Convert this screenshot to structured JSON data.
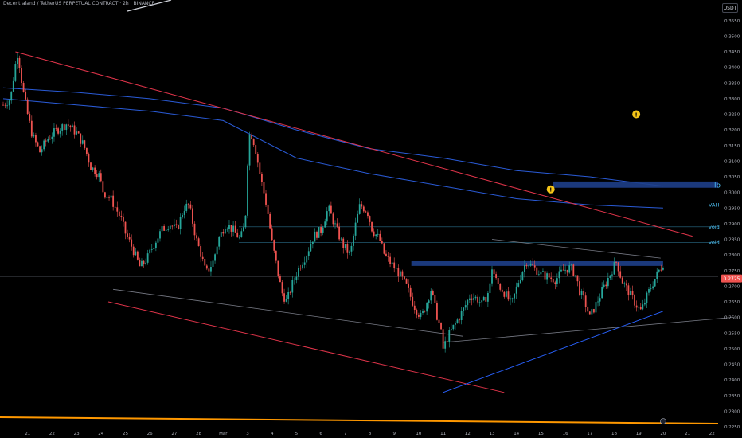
{
  "header": {
    "title": "Decentraland / TetherUS PERPETUAL CONTRACT · 2h · BINANCE",
    "currency": "USDT"
  },
  "colors": {
    "background": "#000000",
    "candle_up": "#26a69a",
    "candle_down": "#ef5350",
    "vwap_upper": "#2a5bd7",
    "vwap_lower": "#2a5bd7",
    "red_trendline": "#e0344a",
    "blue_trendline": "#2962ff",
    "zone_fill": "#1e3f8a",
    "gray_line": "#787b86",
    "orange_line": "#ff9800",
    "current_price_bg": "#ef5350",
    "alert_icon": "#f5c518"
  },
  "chart_data": {
    "type": "candlestick",
    "y_axis_ticks": [
      "0.3550",
      "0.3500",
      "0.3450",
      "0.3400",
      "0.3350",
      "0.3300",
      "0.3250",
      "0.3200",
      "0.3150",
      "0.3100",
      "0.3050",
      "0.3000",
      "0.2950",
      "0.2900",
      "0.2850",
      "0.2800",
      "0.2750",
      "0.2700",
      "0.2650",
      "0.2600",
      "0.2550",
      "0.2500",
      "0.2450",
      "0.2400",
      "0.2350",
      "0.2300",
      "0.2250"
    ],
    "ylim": [
      0.225,
      0.358
    ],
    "x_axis_ticks": [
      {
        "label": "21",
        "day": 21
      },
      {
        "label": "22",
        "day": 22
      },
      {
        "label": "23",
        "day": 23
      },
      {
        "label": "24",
        "day": 24
      },
      {
        "label": "25",
        "day": 25
      },
      {
        "label": "26",
        "day": 26
      },
      {
        "label": "27",
        "day": 27
      },
      {
        "label": "28",
        "day": 28
      },
      {
        "label": "Mar",
        "day": 29
      },
      {
        "label": "3",
        "day": 30
      },
      {
        "label": "4",
        "day": 31
      },
      {
        "label": "5",
        "day": 32
      },
      {
        "label": "6",
        "day": 33
      },
      {
        "label": "7",
        "day": 34
      },
      {
        "label": "8",
        "day": 35
      },
      {
        "label": "9",
        "day": 36
      },
      {
        "label": "10",
        "day": 37
      },
      {
        "label": "11",
        "day": 38
      },
      {
        "label": "12",
        "day": 39
      },
      {
        "label": "13",
        "day": 40
      },
      {
        "label": "14",
        "day": 41
      },
      {
        "label": "15",
        "day": 42
      },
      {
        "label": "16",
        "day": 43
      },
      {
        "label": "17",
        "day": 44
      },
      {
        "label": "18",
        "day": 45
      },
      {
        "label": "19",
        "day": 46
      },
      {
        "label": "20",
        "day": 47
      },
      {
        "label": "21",
        "day": 48
      },
      {
        "label": "22",
        "day": 49
      }
    ],
    "price_path": [
      [
        20.0,
        0.328
      ],
      [
        20.3,
        0.33
      ],
      [
        20.5,
        0.341
      ],
      [
        20.6,
        0.345
      ],
      [
        20.8,
        0.333
      ],
      [
        21.0,
        0.325
      ],
      [
        21.2,
        0.318
      ],
      [
        21.5,
        0.313
      ],
      [
        21.8,
        0.317
      ],
      [
        22.2,
        0.32
      ],
      [
        22.6,
        0.322
      ],
      [
        23.0,
        0.319
      ],
      [
        23.3,
        0.315
      ],
      [
        23.6,
        0.308
      ],
      [
        23.9,
        0.306
      ],
      [
        24.1,
        0.3
      ],
      [
        24.4,
        0.298
      ],
      [
        24.6,
        0.295
      ],
      [
        24.8,
        0.292
      ],
      [
        25.0,
        0.287
      ],
      [
        25.3,
        0.282
      ],
      [
        25.6,
        0.276
      ],
      [
        25.9,
        0.279
      ],
      [
        26.2,
        0.284
      ],
      [
        26.5,
        0.288
      ],
      [
        26.8,
        0.29
      ],
      [
        27.1,
        0.288
      ],
      [
        27.4,
        0.295
      ],
      [
        27.6,
        0.296
      ],
      [
        27.9,
        0.285
      ],
      [
        28.1,
        0.28
      ],
      [
        28.3,
        0.274
      ],
      [
        28.6,
        0.278
      ],
      [
        28.8,
        0.285
      ],
      [
        29.1,
        0.29
      ],
      [
        29.4,
        0.288
      ],
      [
        29.7,
        0.285
      ],
      [
        29.9,
        0.29
      ],
      [
        30.0,
        0.31
      ],
      [
        30.1,
        0.32
      ],
      [
        30.3,
        0.315
      ],
      [
        30.5,
        0.306
      ],
      [
        30.8,
        0.295
      ],
      [
        31.0,
        0.284
      ],
      [
        31.2,
        0.276
      ],
      [
        31.4,
        0.268
      ],
      [
        31.6,
        0.265
      ],
      [
        31.8,
        0.27
      ],
      [
        32.1,
        0.276
      ],
      [
        32.4,
        0.28
      ],
      [
        32.7,
        0.286
      ],
      [
        33.0,
        0.288
      ],
      [
        33.3,
        0.295
      ],
      [
        33.6,
        0.289
      ],
      [
        33.9,
        0.283
      ],
      [
        34.2,
        0.28
      ],
      [
        34.4,
        0.289
      ],
      [
        34.6,
        0.296
      ],
      [
        34.9,
        0.294
      ],
      [
        35.1,
        0.288
      ],
      [
        35.4,
        0.285
      ],
      [
        35.6,
        0.28
      ],
      [
        35.9,
        0.277
      ],
      [
        36.2,
        0.274
      ],
      [
        36.5,
        0.27
      ],
      [
        36.8,
        0.264
      ],
      [
        37.1,
        0.26
      ],
      [
        37.3,
        0.264
      ],
      [
        37.5,
        0.269
      ],
      [
        37.7,
        0.262
      ],
      [
        37.9,
        0.256
      ],
      [
        38.0,
        0.25
      ],
      [
        38.2,
        0.254
      ],
      [
        38.5,
        0.258
      ],
      [
        38.8,
        0.262
      ],
      [
        39.1,
        0.267
      ],
      [
        39.4,
        0.266
      ],
      [
        39.6,
        0.264
      ],
      [
        39.9,
        0.269
      ],
      [
        40.0,
        0.276
      ],
      [
        40.2,
        0.271
      ],
      [
        40.5,
        0.268
      ],
      [
        40.8,
        0.264
      ],
      [
        41.1,
        0.272
      ],
      [
        41.4,
        0.278
      ],
      [
        41.7,
        0.276
      ],
      [
        42.0,
        0.274
      ],
      [
        42.3,
        0.273
      ],
      [
        42.6,
        0.272
      ],
      [
        42.9,
        0.275
      ],
      [
        43.2,
        0.276
      ],
      [
        43.4,
        0.274
      ],
      [
        43.6,
        0.268
      ],
      [
        43.8,
        0.265
      ],
      [
        44.0,
        0.26
      ],
      [
        44.3,
        0.265
      ],
      [
        44.6,
        0.27
      ],
      [
        44.9,
        0.275
      ],
      [
        45.1,
        0.278
      ],
      [
        45.3,
        0.272
      ],
      [
        45.6,
        0.268
      ],
      [
        45.9,
        0.264
      ],
      [
        46.1,
        0.262
      ],
      [
        46.4,
        0.268
      ],
      [
        46.7,
        0.273
      ],
      [
        46.9,
        0.276
      ],
      [
        47.0,
        0.2772
      ]
    ],
    "horizontal_levels": [
      {
        "label": "VAH",
        "price": 0.296
      },
      {
        "label": "void",
        "price": 0.289
      },
      {
        "label": "void",
        "price": 0.284
      }
    ],
    "zones": [
      {
        "label": "lo",
        "day_start": 42.5,
        "day_end": 50.0,
        "price_top": 0.3035,
        "price_bottom": 0.3015
      },
      {
        "label": "",
        "day_start": 36.7,
        "day_end": 47.0,
        "price_top": 0.278,
        "price_bottom": 0.2765
      }
    ],
    "current_price": {
      "label": "0.2725",
      "price": 0.2725
    },
    "upper_band": [
      [
        20,
        0.3335
      ],
      [
        23,
        0.332
      ],
      [
        26,
        0.33
      ],
      [
        29,
        0.327
      ],
      [
        32,
        0.32
      ],
      [
        35,
        0.314
      ],
      [
        38,
        0.311
      ],
      [
        41,
        0.307
      ],
      [
        44,
        0.305
      ],
      [
        47,
        0.302
      ]
    ],
    "lower_band": [
      [
        20,
        0.33
      ],
      [
        23,
        0.328
      ],
      [
        26,
        0.326
      ],
      [
        29,
        0.323
      ],
      [
        32,
        0.311
      ],
      [
        35,
        0.306
      ],
      [
        38,
        0.302
      ],
      [
        41,
        0.298
      ],
      [
        44,
        0.296
      ],
      [
        47,
        0.295
      ]
    ],
    "red_channel_top": [
      [
        20.5,
        0.345
      ],
      [
        48.2,
        0.286
      ]
    ],
    "red_channel_bottom": [
      [
        24.3,
        0.265
      ],
      [
        40.5,
        0.236
      ]
    ],
    "gray_channel": [
      [
        24.5,
        0.269
      ],
      [
        38.8,
        0.254
      ]
    ],
    "gray_top_line": [
      [
        40.0,
        0.285
      ],
      [
        46.9,
        0.279
      ]
    ],
    "blue_trendline": [
      [
        38.0,
        0.236
      ],
      [
        47.0,
        0.262
      ]
    ],
    "gray_rising_line": [
      [
        38.0,
        0.252
      ],
      [
        49.8,
        0.26
      ]
    ],
    "alerts": [
      {
        "symbol": "!",
        "day": 42.4,
        "price": 0.301
      },
      {
        "symbol": "!",
        "day": 45.9,
        "price": 0.325
      }
    ]
  }
}
